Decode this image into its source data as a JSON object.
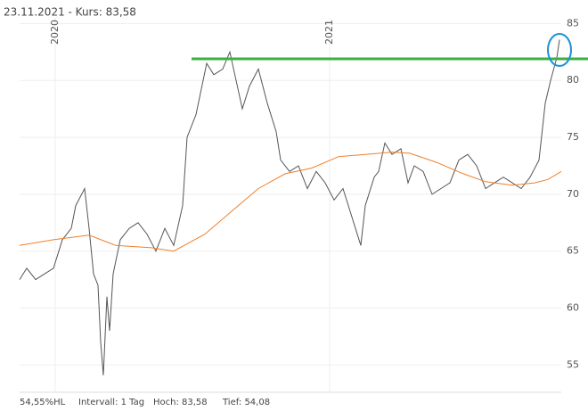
{
  "header": "23.11.2021  - Kurs: 83,58",
  "footer": [
    "54,55%HL",
    "Intervall: 1 Tag",
    "Hoch: 83,58",
    "Tief: 54,08"
  ],
  "chart_data": {
    "type": "line",
    "ylim": [
      52.6,
      85.5
    ],
    "yticks": [
      55,
      60,
      65,
      70,
      75,
      80,
      85
    ],
    "xlim": [
      0,
      608
    ],
    "xticks": [
      {
        "value": 40,
        "label": "2020"
      },
      {
        "value": 348,
        "label": "2021"
      }
    ],
    "grid": true,
    "hline": {
      "value": 81.9,
      "color": "#3cb043"
    },
    "series": [
      {
        "color": "#555555",
        "x": [
          0,
          8,
          18,
          28,
          38,
          48,
          58,
          63,
          73,
          78,
          83,
          88,
          91,
          94,
          98,
          101,
          105,
          113,
          123,
          133,
          143,
          153,
          163,
          173,
          183,
          188,
          198,
          206,
          210,
          218,
          228,
          236,
          243,
          250,
          258,
          268,
          278,
          288,
          293,
          303,
          313,
          323,
          333,
          343,
          353,
          363,
          373,
          383,
          388,
          398,
          403,
          410,
          418,
          428,
          436,
          443,
          453,
          463,
          473,
          483,
          493,
          503,
          513,
          523,
          533,
          543,
          553,
          563,
          573,
          583,
          590,
          596,
          603,
          606
        ],
        "values": [
          62.5,
          63.5,
          62.5,
          63,
          63.5,
          66,
          67,
          69,
          70.5,
          67,
          63,
          62,
          57,
          54.1,
          61,
          58,
          63,
          66,
          67,
          67.5,
          66.5,
          65,
          67,
          65.5,
          69,
          75,
          77,
          80,
          81.5,
          80.5,
          81,
          82.5,
          80,
          77.5,
          79.5,
          81,
          78,
          75.5,
          73,
          72,
          72.5,
          70.5,
          72,
          71,
          69.5,
          70.5,
          68,
          65.5,
          69,
          71.5,
          72,
          74.5,
          73.5,
          74,
          71,
          72.5,
          72,
          70,
          70.5,
          71,
          73,
          73.5,
          72.5,
          70.5,
          71,
          71.5,
          71,
          70.5,
          71.5,
          73,
          78,
          80,
          82,
          83.58
        ]
      },
      {
        "color": "#f07f2a",
        "x": [
          0,
          38,
          78,
          108,
          148,
          173,
          208,
          238,
          268,
          298,
          328,
          358,
          388,
          418,
          438,
          468,
          498,
          523,
          553,
          578,
          593,
          608
        ],
        "values": [
          65.5,
          66,
          66.4,
          65.5,
          65.3,
          65,
          66.5,
          68.5,
          70.5,
          71.8,
          72.3,
          73.3,
          73.5,
          73.7,
          73.6,
          72.8,
          71.8,
          71.1,
          70.8,
          71,
          71.3,
          72
        ]
      }
    ]
  }
}
